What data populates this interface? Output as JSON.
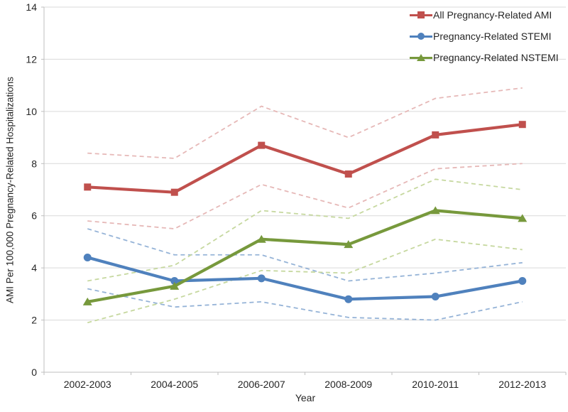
{
  "chart_data": {
    "type": "line",
    "title": "",
    "xlabel": "Year",
    "ylabel": "AMI Per 100,000 Pregnancy-Related Hospitalizations",
    "categories": [
      "2002-2003",
      "2004-2005",
      "2006-2007",
      "2008-2009",
      "2010-2011",
      "2012-2013"
    ],
    "ylim": [
      0,
      14
    ],
    "ytick_step": 2,
    "grid": true,
    "legend_position": "top-right",
    "colors": {
      "gridline": "#D9D9D9",
      "axis": "#BFBFBF",
      "text": "#262626"
    },
    "series": [
      {
        "name": "All Pregnancy-Related AMI",
        "marker": "square",
        "color": "#C0504D",
        "ci_color": "#E6B8B7",
        "values": [
          7.1,
          6.9,
          8.7,
          7.6,
          9.1,
          9.5
        ],
        "ci_upper": [
          8.4,
          8.2,
          10.2,
          9.0,
          10.5,
          10.9
        ],
        "ci_lower": [
          5.8,
          5.5,
          7.2,
          6.3,
          7.8,
          8.0
        ]
      },
      {
        "name": "Pregnancy-Related STEMI",
        "marker": "circle",
        "color": "#4F81BD",
        "ci_color": "#95B3D7",
        "values": [
          4.4,
          3.5,
          3.6,
          2.8,
          2.9,
          3.5
        ],
        "ci_upper": [
          5.5,
          4.5,
          4.5,
          3.5,
          3.8,
          4.2
        ],
        "ci_lower": [
          3.2,
          2.5,
          2.7,
          2.1,
          2.0,
          2.7
        ]
      },
      {
        "name": "Pregnancy-Related NSTEMI",
        "marker": "triangle",
        "color": "#77993C",
        "ci_color": "#C6D89F",
        "values": [
          2.7,
          3.3,
          5.1,
          4.9,
          6.2,
          5.9
        ],
        "ci_upper": [
          3.5,
          4.1,
          6.2,
          5.9,
          7.4,
          7.0
        ],
        "ci_lower": [
          1.9,
          2.8,
          3.9,
          3.8,
          5.1,
          4.7
        ]
      }
    ]
  }
}
